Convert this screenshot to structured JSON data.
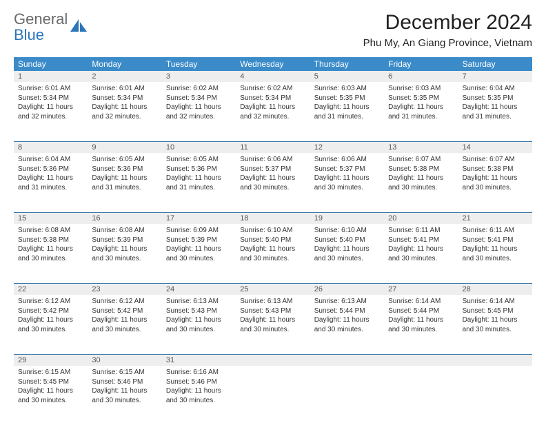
{
  "brand": {
    "part1": "General",
    "part2": "Blue"
  },
  "title": "December 2024",
  "location": "Phu My, An Giang Province, Vietnam",
  "colors": {
    "header_bg": "#3b8bc9",
    "header_text": "#ffffff",
    "week_rule": "#3b7cb0",
    "daynum_bg": "#eeeeee",
    "text": "#333333",
    "brand_gray": "#6a6a6a",
    "brand_blue": "#2a76b8"
  },
  "days_of_week": [
    "Sunday",
    "Monday",
    "Tuesday",
    "Wednesday",
    "Thursday",
    "Friday",
    "Saturday"
  ],
  "weeks": [
    [
      {
        "n": "1",
        "sunrise": "6:01 AM",
        "sunset": "5:34 PM",
        "daylight": "11 hours and 32 minutes."
      },
      {
        "n": "2",
        "sunrise": "6:01 AM",
        "sunset": "5:34 PM",
        "daylight": "11 hours and 32 minutes."
      },
      {
        "n": "3",
        "sunrise": "6:02 AM",
        "sunset": "5:34 PM",
        "daylight": "11 hours and 32 minutes."
      },
      {
        "n": "4",
        "sunrise": "6:02 AM",
        "sunset": "5:34 PM",
        "daylight": "11 hours and 32 minutes."
      },
      {
        "n": "5",
        "sunrise": "6:03 AM",
        "sunset": "5:35 PM",
        "daylight": "11 hours and 31 minutes."
      },
      {
        "n": "6",
        "sunrise": "6:03 AM",
        "sunset": "5:35 PM",
        "daylight": "11 hours and 31 minutes."
      },
      {
        "n": "7",
        "sunrise": "6:04 AM",
        "sunset": "5:35 PM",
        "daylight": "11 hours and 31 minutes."
      }
    ],
    [
      {
        "n": "8",
        "sunrise": "6:04 AM",
        "sunset": "5:36 PM",
        "daylight": "11 hours and 31 minutes."
      },
      {
        "n": "9",
        "sunrise": "6:05 AM",
        "sunset": "5:36 PM",
        "daylight": "11 hours and 31 minutes."
      },
      {
        "n": "10",
        "sunrise": "6:05 AM",
        "sunset": "5:36 PM",
        "daylight": "11 hours and 31 minutes."
      },
      {
        "n": "11",
        "sunrise": "6:06 AM",
        "sunset": "5:37 PM",
        "daylight": "11 hours and 30 minutes."
      },
      {
        "n": "12",
        "sunrise": "6:06 AM",
        "sunset": "5:37 PM",
        "daylight": "11 hours and 30 minutes."
      },
      {
        "n": "13",
        "sunrise": "6:07 AM",
        "sunset": "5:38 PM",
        "daylight": "11 hours and 30 minutes."
      },
      {
        "n": "14",
        "sunrise": "6:07 AM",
        "sunset": "5:38 PM",
        "daylight": "11 hours and 30 minutes."
      }
    ],
    [
      {
        "n": "15",
        "sunrise": "6:08 AM",
        "sunset": "5:38 PM",
        "daylight": "11 hours and 30 minutes."
      },
      {
        "n": "16",
        "sunrise": "6:08 AM",
        "sunset": "5:39 PM",
        "daylight": "11 hours and 30 minutes."
      },
      {
        "n": "17",
        "sunrise": "6:09 AM",
        "sunset": "5:39 PM",
        "daylight": "11 hours and 30 minutes."
      },
      {
        "n": "18",
        "sunrise": "6:10 AM",
        "sunset": "5:40 PM",
        "daylight": "11 hours and 30 minutes."
      },
      {
        "n": "19",
        "sunrise": "6:10 AM",
        "sunset": "5:40 PM",
        "daylight": "11 hours and 30 minutes."
      },
      {
        "n": "20",
        "sunrise": "6:11 AM",
        "sunset": "5:41 PM",
        "daylight": "11 hours and 30 minutes."
      },
      {
        "n": "21",
        "sunrise": "6:11 AM",
        "sunset": "5:41 PM",
        "daylight": "11 hours and 30 minutes."
      }
    ],
    [
      {
        "n": "22",
        "sunrise": "6:12 AM",
        "sunset": "5:42 PM",
        "daylight": "11 hours and 30 minutes."
      },
      {
        "n": "23",
        "sunrise": "6:12 AM",
        "sunset": "5:42 PM",
        "daylight": "11 hours and 30 minutes."
      },
      {
        "n": "24",
        "sunrise": "6:13 AM",
        "sunset": "5:43 PM",
        "daylight": "11 hours and 30 minutes."
      },
      {
        "n": "25",
        "sunrise": "6:13 AM",
        "sunset": "5:43 PM",
        "daylight": "11 hours and 30 minutes."
      },
      {
        "n": "26",
        "sunrise": "6:13 AM",
        "sunset": "5:44 PM",
        "daylight": "11 hours and 30 minutes."
      },
      {
        "n": "27",
        "sunrise": "6:14 AM",
        "sunset": "5:44 PM",
        "daylight": "11 hours and 30 minutes."
      },
      {
        "n": "28",
        "sunrise": "6:14 AM",
        "sunset": "5:45 PM",
        "daylight": "11 hours and 30 minutes."
      }
    ],
    [
      {
        "n": "29",
        "sunrise": "6:15 AM",
        "sunset": "5:45 PM",
        "daylight": "11 hours and 30 minutes."
      },
      {
        "n": "30",
        "sunrise": "6:15 AM",
        "sunset": "5:46 PM",
        "daylight": "11 hours and 30 minutes."
      },
      {
        "n": "31",
        "sunrise": "6:16 AM",
        "sunset": "5:46 PM",
        "daylight": "11 hours and 30 minutes."
      },
      null,
      null,
      null,
      null
    ]
  ],
  "labels": {
    "sunrise": "Sunrise: ",
    "sunset": "Sunset: ",
    "daylight": "Daylight: "
  }
}
